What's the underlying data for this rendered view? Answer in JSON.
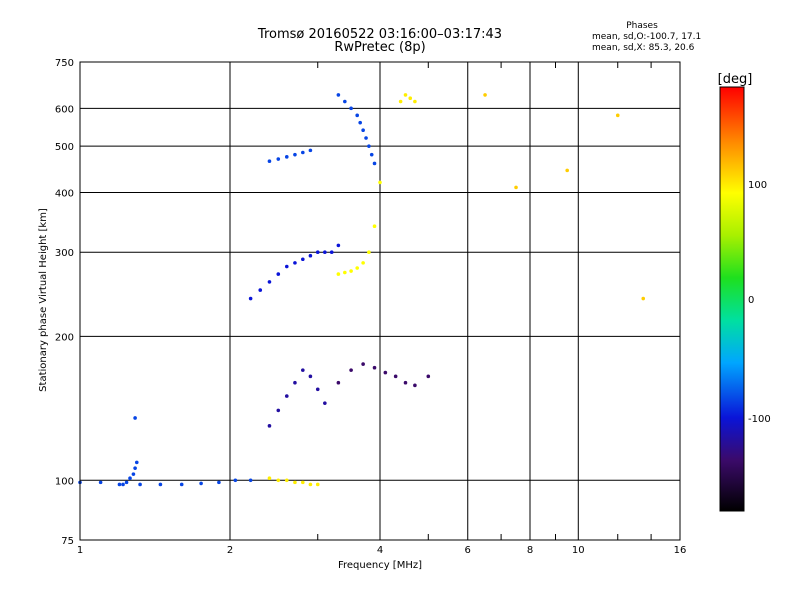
{
  "header": {
    "title_line1": "Tromsø 20160522 03:16:00–03:17:43",
    "title_line2": "RwPretec (8p)"
  },
  "phase_info": {
    "title": "Phases",
    "mean_sd_o": "mean, sd,O:-100.7, 17.1",
    "mean_sd_x": "mean, sd,X: 85.3, 20.6"
  },
  "colorbar": {
    "unit_label": "[deg]",
    "ticks": [
      "100",
      "0",
      "-100"
    ]
  },
  "colors": {
    "grid": "#000000",
    "background": "#ffffff"
  },
  "chart_data": {
    "type": "scatter",
    "title": "Tromsø 20160522 03:16:00–03:17:43",
    "subtitle": "RwPretec (8p)",
    "xlabel": "Frequency [MHz]",
    "ylabel": "Stationary phase Virtual Height [km]",
    "xscale": "log",
    "yscale": "log",
    "xlim": [
      1,
      16
    ],
    "ylim": [
      75,
      750
    ],
    "x_ticks": [
      "1",
      "2",
      "4",
      "6",
      "8",
      "10",
      "16"
    ],
    "x_tick_values": [
      1,
      2,
      4,
      6,
      8,
      10,
      16
    ],
    "y_ticks": [
      "750",
      "600",
      "500",
      "400",
      "300",
      "200",
      "100",
      "75"
    ],
    "y_tick_values": [
      750,
      600,
      500,
      400,
      300,
      200,
      100,
      75
    ],
    "grid": true,
    "color_encoding": "phase",
    "color_range": [
      -150,
      150
    ],
    "traces": [
      {
        "name": "ground-trace",
        "x": [
          1.0,
          1.1,
          1.2,
          1.32,
          1.45,
          1.6,
          1.75,
          1.9,
          2.05,
          2.2
        ],
        "y": [
          99,
          99,
          98,
          98,
          98,
          98,
          98.5,
          99,
          100,
          100
        ],
        "phase": -100
      },
      {
        "name": "spike-1.27",
        "x": [
          1.22,
          1.24,
          1.26,
          1.28,
          1.29,
          1.3
        ],
        "y": [
          98,
          99,
          101,
          103,
          106,
          109
        ],
        "phase": -100
      },
      {
        "name": "isolated-1.3",
        "x": [
          1.29
        ],
        "y": [
          135
        ],
        "phase": -100
      },
      {
        "name": "cusp-3.3-3.9",
        "x": [
          3.3,
          3.4,
          3.5,
          3.6,
          3.65,
          3.7,
          3.75,
          3.8,
          3.85,
          3.9
        ],
        "y": [
          640,
          620,
          600,
          580,
          560,
          540,
          520,
          500,
          480,
          460
        ],
        "phase": -100
      },
      {
        "name": "lower-F-2.2-3.3",
        "x": [
          2.2,
          2.3,
          2.4,
          2.5,
          2.6,
          2.7,
          2.8,
          2.9,
          3.0,
          3.1,
          3.2,
          3.3
        ],
        "y": [
          240,
          250,
          260,
          270,
          280,
          285,
          290,
          295,
          300,
          300,
          300,
          310
        ],
        "phase": -110
      },
      {
        "name": "upper-F-2.4-2.9",
        "x": [
          2.4,
          2.5,
          2.6,
          2.7,
          2.8,
          2.9
        ],
        "y": [
          465,
          470,
          475,
          480,
          485,
          490
        ],
        "phase": -100
      },
      {
        "name": "yellow-x-3.3-4",
        "x": [
          3.3,
          3.4,
          3.5,
          3.6,
          3.7,
          3.8,
          3.9,
          4.0
        ],
        "y": [
          270,
          272,
          274,
          278,
          285,
          300,
          340,
          420
        ],
        "phase": 85
      },
      {
        "name": "yellow-top-4.6",
        "x": [
          4.4,
          4.5,
          4.6,
          4.7
        ],
        "y": [
          620,
          640,
          630,
          620
        ],
        "phase": 90
      },
      {
        "name": "E-scatter-2.4-3.1",
        "x": [
          2.4,
          2.5,
          2.6,
          2.7,
          2.8,
          2.9,
          3.0,
          3.1
        ],
        "y": [
          130,
          140,
          150,
          160,
          170,
          165,
          155,
          145
        ],
        "phase": -120
      },
      {
        "name": "low-yellow-2.4-3",
        "x": [
          2.4,
          2.5,
          2.6,
          2.7,
          2.8,
          2.9,
          3.0
        ],
        "y": [
          101,
          100,
          100,
          99,
          99,
          98,
          98
        ],
        "phase": 90
      },
      {
        "name": "mid-scatter-3.3-5",
        "x": [
          3.3,
          3.5,
          3.7,
          3.9,
          4.1,
          4.3,
          4.5,
          4.7,
          5.0
        ],
        "y": [
          160,
          170,
          175,
          172,
          168,
          165,
          160,
          158,
          165
        ],
        "phase": -130
      },
      {
        "name": "right-scatter-6.5-14",
        "x": [
          6.5,
          7.5,
          9.5,
          12.0,
          13.5
        ],
        "y": [
          640,
          410,
          445,
          580,
          240
        ],
        "phase": 100
      }
    ]
  }
}
